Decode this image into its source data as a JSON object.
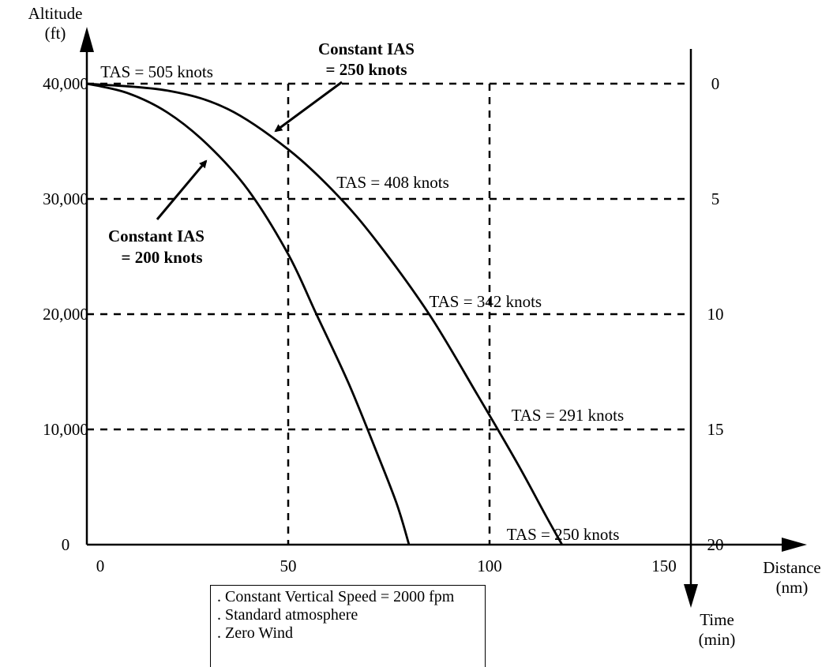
{
  "chart_data": {
    "type": "line",
    "title": "",
    "ylabel": "Altitude\n(ft)",
    "ylabel_lines": [
      "Altitude",
      "(ft)"
    ],
    "xlabel_lines": [
      "Distance",
      "(nm)"
    ],
    "time_label_lines": [
      "Time",
      "(min)"
    ],
    "xlim": [
      0,
      150
    ],
    "ylim": [
      0,
      40000
    ],
    "x_ticks": [
      {
        "value": 0,
        "label": "0"
      },
      {
        "value": 50,
        "label": "50"
      },
      {
        "value": 100,
        "label": "100"
      },
      {
        "value": 150,
        "label": "150"
      }
    ],
    "y_ticks": [
      {
        "value": 0,
        "label": "0"
      },
      {
        "value": 10000,
        "label": "10,000"
      },
      {
        "value": 20000,
        "label": "20,000"
      },
      {
        "value": 30000,
        "label": "30,000"
      },
      {
        "value": 40000,
        "label": "40,000"
      }
    ],
    "time_ticks": [
      {
        "value": 0,
        "label": "0"
      },
      {
        "value": 5,
        "label": "5"
      },
      {
        "value": 10,
        "label": "10"
      },
      {
        "value": 15,
        "label": "15"
      },
      {
        "value": 20,
        "label": "20"
      }
    ],
    "grid": "dashed",
    "series": [
      {
        "name": "Constant IAS = 200 knots",
        "name_lines": [
          "Constant IAS",
          "= 200 knots"
        ],
        "x": [
          0,
          10,
          20,
          30,
          40,
          50,
          57,
          65,
          72,
          77,
          80
        ],
        "y": [
          40000,
          39200,
          37500,
          34700,
          30800,
          25200,
          20000,
          14000,
          8000,
          3500,
          0
        ]
      },
      {
        "name": "Constant IAS = 250 knots",
        "name_lines": [
          "Constant IAS",
          "= 250 knots"
        ],
        "x": [
          0,
          20,
          35,
          50,
          62,
          72,
          85,
          97,
          107,
          114,
          118
        ],
        "y": [
          40000,
          39400,
          37800,
          34300,
          30400,
          26300,
          20000,
          13000,
          7000,
          2500,
          0
        ]
      }
    ],
    "annotations": [
      {
        "text": "TAS = 505 knots",
        "x": 3,
        "y": 40000
      },
      {
        "text": "TAS = 408 knots",
        "x": 62,
        "y": 30400
      },
      {
        "text": "TAS = 342 knots",
        "x": 85,
        "y": 20000
      },
      {
        "text": "TAS = 291 knots",
        "x": 106,
        "y": 10000
      },
      {
        "text": "TAS = 250 knots",
        "x": 118,
        "y": 0
      }
    ],
    "notes": [
      ". Constant Vertical Speed = 2000 fpm",
      ". Standard atmosphere",
      ". Zero Wind"
    ]
  }
}
